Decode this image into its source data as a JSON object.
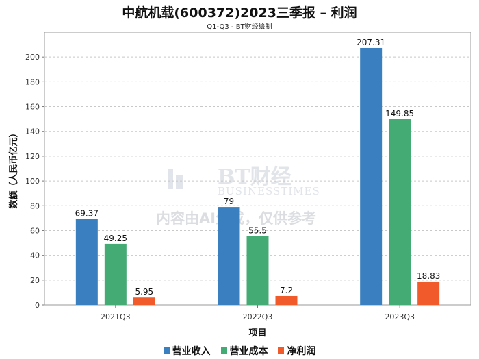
{
  "title": "中航机载(600372)2023三季报 – 利润",
  "subtitle": "Q1-Q3 - BT财经绘制",
  "watermark": {
    "logo": "BT财经",
    "brand": "BUSINESSTIMES",
    "note": "内容由AI生成，仅供参考"
  },
  "colors": {
    "revenue": "#3a80c0",
    "cost": "#45ab75",
    "profit": "#f15a2b"
  },
  "chart_data": {
    "type": "bar",
    "title": "中航机载(600372)2023三季报 – 利润",
    "subtitle": "Q1-Q3 - BT财经绘制",
    "xlabel": "项目",
    "ylabel": "数额（人民币亿元）",
    "categories": [
      "2021Q3",
      "2022Q3",
      "2023Q3"
    ],
    "series": [
      {
        "name": "营业收入",
        "values": [
          69.37,
          79,
          207.31
        ]
      },
      {
        "name": "营业成本",
        "values": [
          49.25,
          55.5,
          149.85
        ]
      },
      {
        "name": "净利润",
        "values": [
          5.95,
          7.2,
          18.83
        ]
      }
    ],
    "value_labels": [
      [
        "69.37",
        "79",
        "207.31"
      ],
      [
        "49.25",
        "55.5",
        "149.85"
      ],
      [
        "5.95",
        "7.2",
        "18.83"
      ]
    ],
    "yticks": [
      "0",
      "20",
      "40",
      "60",
      "80",
      "100",
      "120",
      "140",
      "160",
      "180",
      "200"
    ],
    "ylim": [
      0,
      220
    ],
    "grid": true,
    "legend_position": "bottom"
  }
}
